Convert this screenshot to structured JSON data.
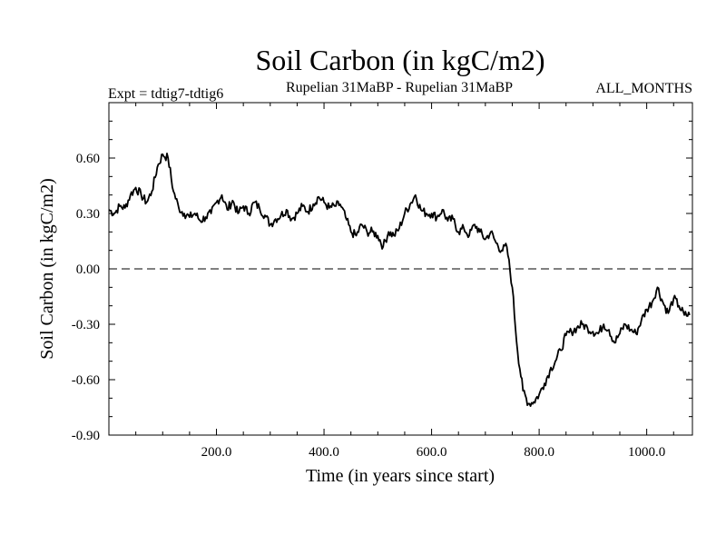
{
  "chart_data": {
    "type": "line",
    "title": "Soil Carbon (in kgC/m2)",
    "subtitle_left": "Expt = tdtig7-tdtig6",
    "subtitle_center": "Rupelian  31MaBP - Rupelian  31MaBP",
    "subtitle_right": "ALL_MONTHS",
    "xlabel": "Time (in years since start)",
    "ylabel": "Soil Carbon (in kgC/m2)",
    "xlim": [
      0,
      1085
    ],
    "ylim": [
      -0.9,
      0.9
    ],
    "x_ticks": [
      200,
      400,
      600,
      800,
      1000
    ],
    "x_tick_labels": [
      "200.0",
      "400.0",
      "600.0",
      "800.0",
      "1000.0"
    ],
    "y_ticks": [
      -0.9,
      -0.6,
      -0.3,
      0.0,
      0.3,
      0.6
    ],
    "y_tick_labels": [
      "-0.90",
      "-0.60",
      "-0.30",
      "0.00",
      "0.30",
      "0.60"
    ],
    "reference_line": 0.0,
    "series": [
      {
        "name": "Soil Carbon",
        "x": [
          0,
          10,
          20,
          30,
          40,
          50,
          60,
          70,
          80,
          90,
          100,
          110,
          120,
          130,
          140,
          150,
          160,
          170,
          180,
          190,
          200,
          210,
          220,
          230,
          240,
          250,
          260,
          270,
          280,
          290,
          300,
          310,
          320,
          330,
          340,
          350,
          360,
          370,
          380,
          390,
          400,
          410,
          420,
          430,
          440,
          450,
          460,
          470,
          480,
          490,
          500,
          510,
          520,
          530,
          540,
          550,
          560,
          570,
          580,
          590,
          600,
          610,
          620,
          630,
          640,
          650,
          660,
          670,
          680,
          690,
          700,
          710,
          720,
          730,
          740,
          750,
          760,
          770,
          780,
          790,
          800,
          810,
          820,
          830,
          840,
          850,
          860,
          870,
          880,
          890,
          900,
          910,
          920,
          930,
          940,
          950,
          960,
          970,
          980,
          990,
          1000,
          1010,
          1020,
          1030,
          1040,
          1050,
          1060,
          1070,
          1080
        ],
        "values": [
          0.32,
          0.3,
          0.34,
          0.33,
          0.4,
          0.44,
          0.4,
          0.36,
          0.42,
          0.55,
          0.62,
          0.6,
          0.42,
          0.33,
          0.3,
          0.28,
          0.3,
          0.26,
          0.28,
          0.3,
          0.36,
          0.4,
          0.32,
          0.37,
          0.3,
          0.34,
          0.3,
          0.36,
          0.33,
          0.29,
          0.24,
          0.27,
          0.29,
          0.32,
          0.27,
          0.3,
          0.34,
          0.31,
          0.35,
          0.39,
          0.36,
          0.33,
          0.34,
          0.35,
          0.28,
          0.2,
          0.18,
          0.24,
          0.2,
          0.2,
          0.18,
          0.12,
          0.2,
          0.18,
          0.22,
          0.3,
          0.35,
          0.4,
          0.32,
          0.3,
          0.3,
          0.28,
          0.32,
          0.26,
          0.27,
          0.2,
          0.22,
          0.18,
          0.24,
          0.2,
          0.16,
          0.2,
          0.14,
          0.1,
          0.12,
          -0.1,
          -0.45,
          -0.66,
          -0.73,
          -0.72,
          -0.68,
          -0.62,
          -0.55,
          -0.5,
          -0.44,
          -0.36,
          -0.34,
          -0.32,
          -0.3,
          -0.32,
          -0.34,
          -0.35,
          -0.3,
          -0.33,
          -0.4,
          -0.35,
          -0.3,
          -0.33,
          -0.35,
          -0.28,
          -0.22,
          -0.18,
          -0.1,
          -0.18,
          -0.24,
          -0.16,
          -0.2,
          -0.25,
          -0.25
        ]
      }
    ]
  }
}
